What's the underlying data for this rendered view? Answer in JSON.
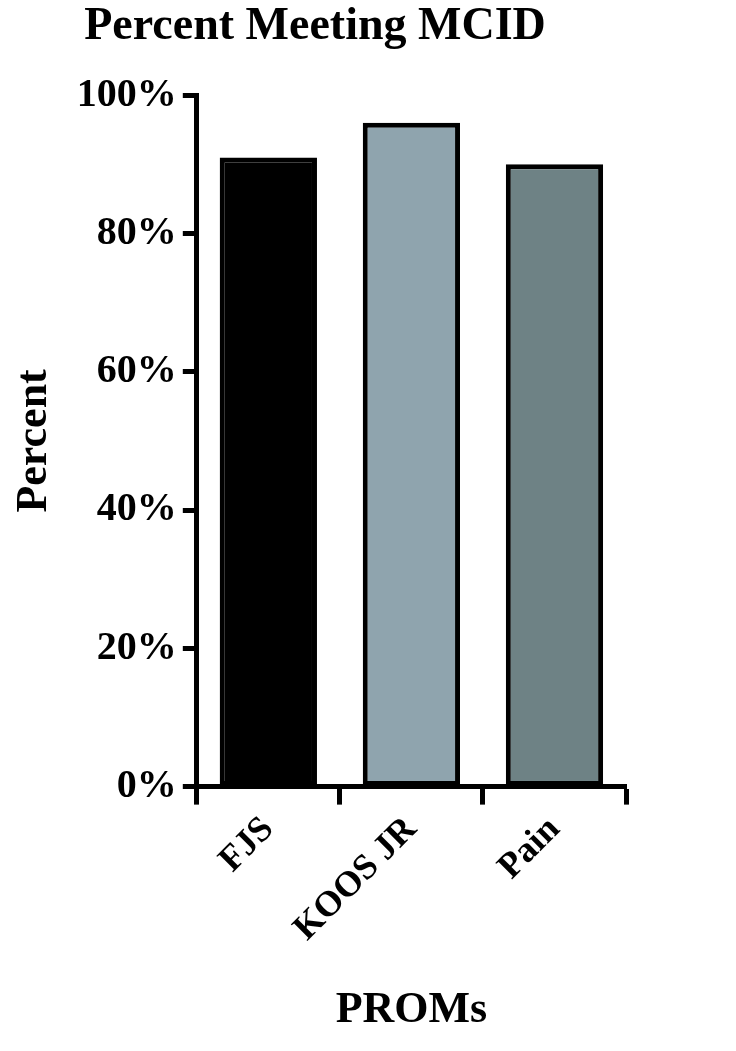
{
  "chart_data": {
    "type": "bar",
    "title": "Percent Meeting MCID",
    "x_label": "PROMs",
    "y_label": "Percent",
    "categories": [
      "FJS",
      "KOOS JR",
      "Pain"
    ],
    "values": [
      91,
      96,
      90
    ],
    "colors": [
      "#000000",
      "#8fa4ae",
      "#6e8285"
    ],
    "ylim": [
      0,
      100
    ],
    "yticks": [
      {
        "value": 0,
        "label": "0%"
      },
      {
        "value": 20,
        "label": "20%"
      },
      {
        "value": 40,
        "label": "40%"
      },
      {
        "value": 60,
        "label": "60%"
      },
      {
        "value": 80,
        "label": "80%"
      },
      {
        "value": 100,
        "label": "100%"
      }
    ],
    "grid": false
  }
}
